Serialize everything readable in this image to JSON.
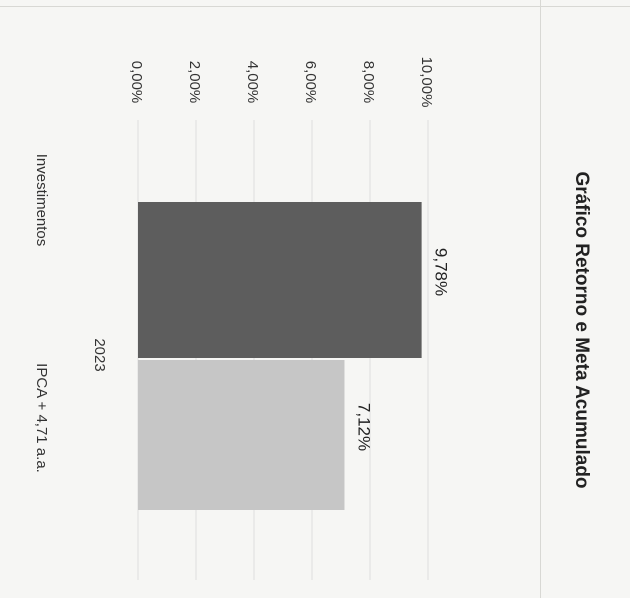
{
  "chart_data": {
    "type": "bar",
    "title": "Gráfico Retorno e Meta Acumulado",
    "category": "2023",
    "series": [
      {
        "name": "Investimentos",
        "value": 9.78,
        "label": "9,78%",
        "color": "#5d5d5d"
      },
      {
        "name": "IPCA + 4,71 a.a.",
        "value": 7.12,
        "label": "7,12%",
        "color": "#c6c6c6"
      }
    ],
    "ticks": [
      "0,00%",
      "2,00%",
      "4,00%",
      "6,00%",
      "8,00%",
      "10,00%"
    ],
    "tick_values": [
      0,
      2,
      4,
      6,
      8,
      10
    ],
    "ylim": [
      0,
      10
    ],
    "grid": true,
    "legend": "bottom",
    "orientation": "rotated-90-clockwise"
  }
}
